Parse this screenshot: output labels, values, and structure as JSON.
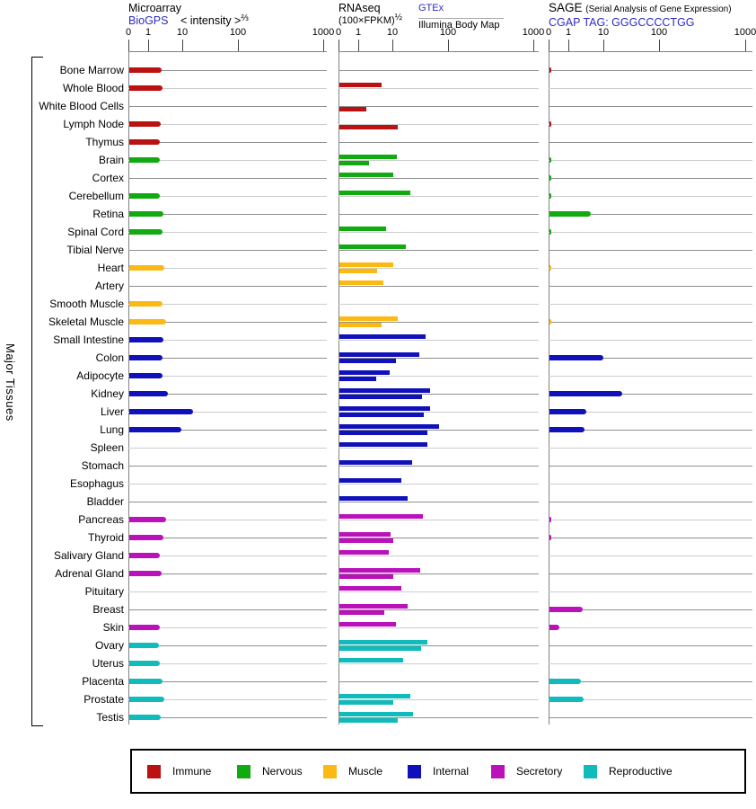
{
  "row_axis_label": "Major Tissues",
  "panels": {
    "microarray": {
      "title": "Microarray",
      "source": "BioGPS",
      "scale_label": "< intensity >",
      "scale_exponent": "⅔"
    },
    "rnaseq": {
      "title": "RNAseq",
      "scale_label": "(100×FPKM)",
      "scale_exponent": "½",
      "source1": "GTEx",
      "source2": "Illumina Body Map"
    },
    "sage": {
      "title": "SAGE",
      "subtitle": "(Serial Analysis of Gene Expression)",
      "source": "CGAP TAG: GGGCCCCTGG"
    }
  },
  "chart_data": {
    "type": "bar",
    "orientation": "horizontal",
    "axis_ticks": [
      0,
      1,
      10,
      100,
      1000
    ],
    "axis_scale": "compressed log-like scale with decades 0,1,10,100,1000",
    "legend_order": [
      "immune",
      "nervous",
      "muscle",
      "internal",
      "secretory",
      "reproductive"
    ],
    "groups": {
      "immune": {
        "label": "Immune",
        "color": "#bb1111"
      },
      "nervous": {
        "label": "Nervous",
        "color": "#11aa11"
      },
      "muscle": {
        "label": "Muscle",
        "color": "#fdb913"
      },
      "internal": {
        "label": "Internal",
        "color": "#1111bb"
      },
      "secretory": {
        "label": "Secretory",
        "color": "#bb11bb"
      },
      "reproductive": {
        "label": "Reproductive",
        "color": "#11bbbb"
      }
    },
    "categories": [
      {
        "label": "Bone Marrow",
        "group": "immune"
      },
      {
        "label": "Whole Blood",
        "group": "immune"
      },
      {
        "label": "White Blood Cells",
        "group": "immune"
      },
      {
        "label": "Lymph Node",
        "group": "immune"
      },
      {
        "label": "Thymus",
        "group": "immune"
      },
      {
        "label": "Brain",
        "group": "nervous"
      },
      {
        "label": "Cortex",
        "group": "nervous"
      },
      {
        "label": "Cerebellum",
        "group": "nervous"
      },
      {
        "label": "Retina",
        "group": "nervous"
      },
      {
        "label": "Spinal Cord",
        "group": "nervous"
      },
      {
        "label": "Tibial Nerve",
        "group": "nervous"
      },
      {
        "label": "Heart",
        "group": "muscle"
      },
      {
        "label": "Artery",
        "group": "muscle"
      },
      {
        "label": "Smooth Muscle",
        "group": "muscle"
      },
      {
        "label": "Skeletal Muscle",
        "group": "muscle"
      },
      {
        "label": "Small Intestine",
        "group": "internal"
      },
      {
        "label": "Colon",
        "group": "internal"
      },
      {
        "label": "Adipocyte",
        "group": "internal"
      },
      {
        "label": "Kidney",
        "group": "internal"
      },
      {
        "label": "Liver",
        "group": "internal"
      },
      {
        "label": "Lung",
        "group": "internal"
      },
      {
        "label": "Spleen",
        "group": "internal"
      },
      {
        "label": "Stomach",
        "group": "internal"
      },
      {
        "label": "Esophagus",
        "group": "internal"
      },
      {
        "label": "Bladder",
        "group": "internal"
      },
      {
        "label": "Pancreas",
        "group": "secretory"
      },
      {
        "label": "Thyroid",
        "group": "secretory"
      },
      {
        "label": "Salivary Gland",
        "group": "secretory"
      },
      {
        "label": "Adrenal Gland",
        "group": "secretory"
      },
      {
        "label": "Pituitary",
        "group": "secretory"
      },
      {
        "label": "Breast",
        "group": "secretory"
      },
      {
        "label": "Skin",
        "group": "secretory"
      },
      {
        "label": "Ovary",
        "group": "reproductive"
      },
      {
        "label": "Uterus",
        "group": "reproductive"
      },
      {
        "label": "Placenta",
        "group": "reproductive"
      },
      {
        "label": "Prostate",
        "group": "reproductive"
      },
      {
        "label": "Testis",
        "group": "reproductive"
      }
    ],
    "series": {
      "microarray": {
        "name": "Microarray (BioGPS) intensity^(2/3)",
        "values": [
          2.3,
          2.5,
          null,
          2.2,
          2.1,
          2.0,
          null,
          2.1,
          2.6,
          2.5,
          null,
          2.8,
          null,
          2.5,
          3.2,
          2.6,
          2.5,
          2.4,
          3.6,
          15,
          9,
          null,
          null,
          null,
          null,
          3.1,
          2.6,
          2.1,
          2.3,
          null,
          null,
          2.1,
          1.9,
          2.0,
          2.4,
          2.8,
          2.2
        ]
      },
      "rnaseq_gtex": {
        "name": "RNAseq GTEx (100×FPKM)^(1/2)",
        "values": [
          null,
          4.5,
          null,
          null,
          null,
          11.5,
          9.8,
          20,
          null,
          6.1,
          17,
          9.8,
          5.0,
          null,
          12,
          38,
          30,
          7.7,
          46,
          47,
          67,
          41,
          22,
          14,
          18,
          34,
          8.5,
          7.2,
          31,
          14,
          18,
          11,
          42,
          15,
          null,
          20,
          23
        ]
      },
      "rnaseq_illumina": {
        "name": "RNAseq Illumina Body Map (100×FPKM)^(1/2)",
        "values": [
          null,
          null,
          1.6,
          12,
          null,
          1.9,
          null,
          null,
          null,
          null,
          null,
          3.3,
          null,
          null,
          4.5,
          null,
          11,
          3.2,
          33,
          35,
          42,
          null,
          null,
          null,
          null,
          null,
          9.8,
          null,
          9.8,
          null,
          5.4,
          null,
          32,
          null,
          null,
          9.8,
          12
        ]
      },
      "sage": {
        "name": "SAGE CGAP TAG: GGGCCCCTGG",
        "values": [
          0.1,
          null,
          null,
          0.1,
          null,
          0.1,
          0.1,
          0.1,
          4.2,
          0.1,
          null,
          0.1,
          null,
          null,
          0.1,
          null,
          9.6,
          null,
          21,
          3.0,
          2.7,
          null,
          null,
          null,
          null,
          0.1,
          0.1,
          null,
          null,
          null,
          2.4,
          0.5,
          null,
          null,
          2.1,
          2.5,
          null
        ]
      }
    }
  }
}
